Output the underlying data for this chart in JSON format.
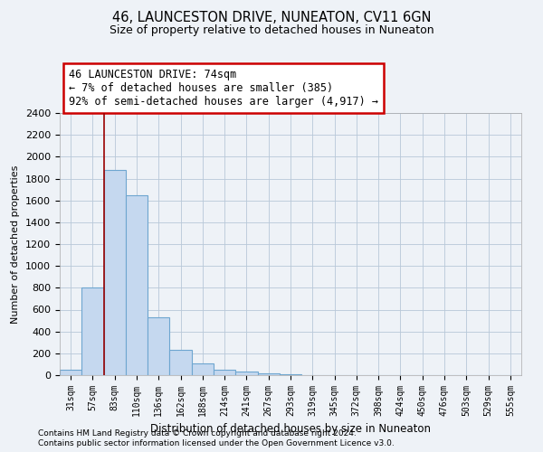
{
  "title": "46, LAUNCESTON DRIVE, NUNEATON, CV11 6GN",
  "subtitle": "Size of property relative to detached houses in Nuneaton",
  "xlabel": "Distribution of detached houses by size in Nuneaton",
  "ylabel": "Number of detached properties",
  "categories": [
    "31sqm",
    "57sqm",
    "83sqm",
    "110sqm",
    "136sqm",
    "162sqm",
    "188sqm",
    "214sqm",
    "241sqm",
    "267sqm",
    "293sqm",
    "319sqm",
    "345sqm",
    "372sqm",
    "398sqm",
    "424sqm",
    "450sqm",
    "476sqm",
    "503sqm",
    "529sqm",
    "555sqm"
  ],
  "values": [
    50,
    800,
    1880,
    1650,
    530,
    235,
    110,
    50,
    30,
    15,
    5,
    0,
    0,
    0,
    0,
    0,
    0,
    0,
    0,
    0,
    0
  ],
  "bar_color": "#c5d8ef",
  "bar_edge_color": "#6ea6d0",
  "annotation_text": "46 LAUNCESTON DRIVE: 74sqm\n← 7% of detached houses are smaller (385)\n92% of semi-detached houses are larger (4,917) →",
  "annotation_box_color": "white",
  "annotation_box_edge_color": "#cc0000",
  "red_line_color": "#990000",
  "ylim": [
    0,
    2400
  ],
  "yticks": [
    0,
    200,
    400,
    600,
    800,
    1000,
    1200,
    1400,
    1600,
    1800,
    2000,
    2200,
    2400
  ],
  "footnote1": "Contains HM Land Registry data © Crown copyright and database right 2024.",
  "footnote2": "Contains public sector information licensed under the Open Government Licence v3.0.",
  "bg_color": "#eef2f7",
  "plot_bg_color": "#eef2f7",
  "grid_color": "#b8c8d8"
}
